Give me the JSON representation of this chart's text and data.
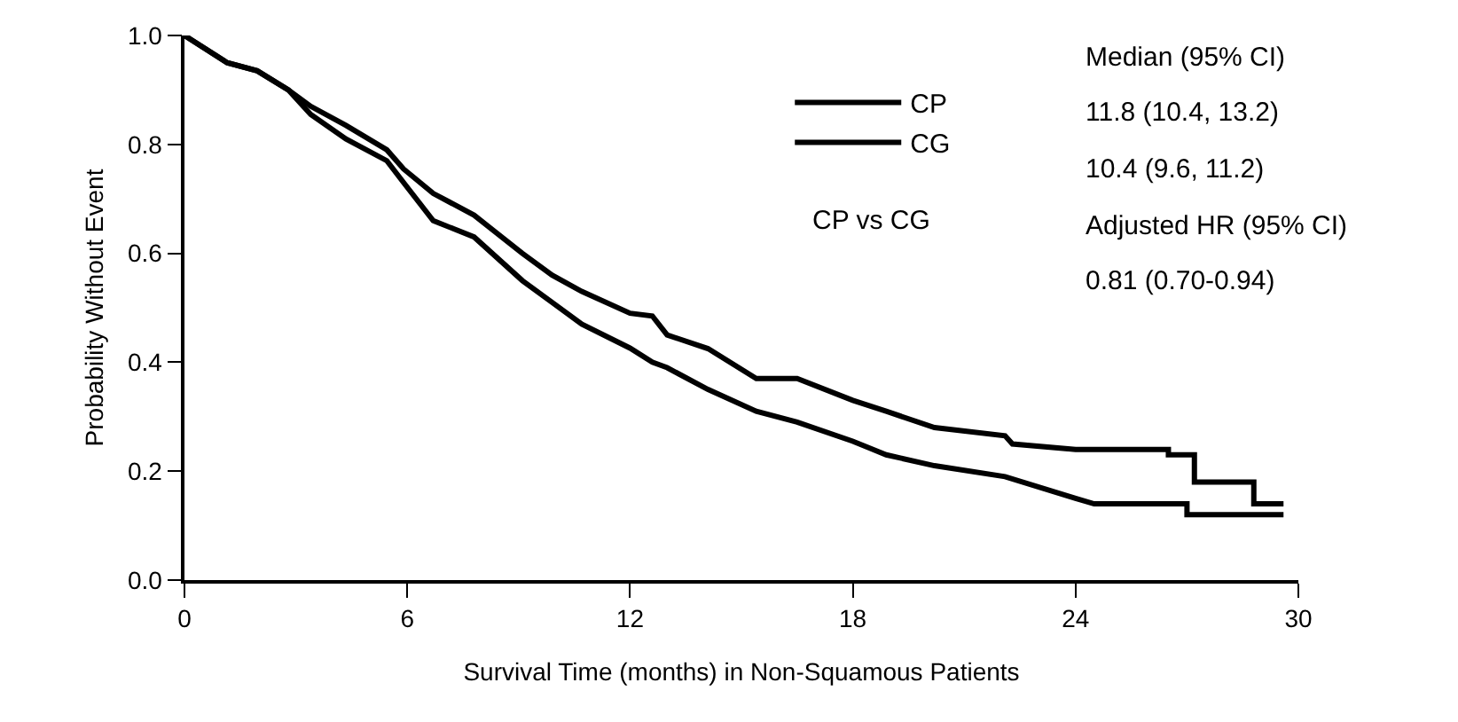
{
  "chart_data": {
    "type": "line",
    "xlabel": "Survival Time (months) in Non-Squamous Patients",
    "ylabel": "Probability Without Event",
    "xlim": [
      0,
      30
    ],
    "xticks": [
      0,
      6,
      12,
      18,
      24,
      30
    ],
    "ylim": [
      0,
      1.0
    ],
    "yticks": [
      {
        "value": 0,
        "label": "0.0"
      },
      0.2,
      0.4,
      0.6,
      0.8,
      {
        "value": 1.0,
        "label": "1.0"
      }
    ],
    "legend": "top",
    "line_style": "solid",
    "marker": "none",
    "annotations": [
      "CP vs CG",
      "Median (95% CI)",
      "11.8 (10.4, 13.2)",
      "10.4 (9.6, 11.2)",
      "Adjusted HR (95% CI)",
      "0.81 (0.70-0.94)"
    ],
    "series": [
      {
        "name": "CP",
        "color": "#000000",
        "x": [
          0,
          1.15,
          1.96,
          2.8,
          3.4,
          4.35,
          5.45,
          5.9,
          6.7,
          7.8,
          9.1,
          9.9,
          10.7,
          12,
          12.6,
          13,
          14.1,
          15.4,
          16.5,
          18,
          18.9,
          20.2,
          22.1,
          22.3,
          24,
          26.5,
          26.5,
          27.2,
          27.2,
          28.8,
          28.8,
          29.6
        ],
        "values": [
          1.0,
          0.95,
          0.935,
          0.9,
          0.87,
          0.835,
          0.79,
          0.755,
          0.71,
          0.67,
          0.6,
          0.56,
          0.53,
          0.49,
          0.485,
          0.45,
          0.425,
          0.37,
          0.37,
          0.33,
          0.31,
          0.28,
          0.265,
          0.25,
          0.24,
          0.24,
          0.23,
          0.23,
          0.18,
          0.18,
          0.14,
          0.14
        ]
      },
      {
        "name": "CG",
        "color": "#000000",
        "x": [
          0,
          1.15,
          1.96,
          2.8,
          3.4,
          4.35,
          5.45,
          5.9,
          6.7,
          7.8,
          9.1,
          9.9,
          10.7,
          12,
          12.6,
          13,
          14.1,
          15.4,
          16.5,
          18,
          18.9,
          20.2,
          22.1,
          24,
          24.5,
          27,
          27,
          29.6
        ],
        "values": [
          1.0,
          0.95,
          0.935,
          0.9,
          0.855,
          0.81,
          0.77,
          0.73,
          0.66,
          0.63,
          0.55,
          0.51,
          0.47,
          0.426,
          0.4,
          0.39,
          0.35,
          0.31,
          0.29,
          0.255,
          0.23,
          0.21,
          0.19,
          0.15,
          0.14,
          0.14,
          0.12,
          0.12
        ]
      }
    ]
  }
}
